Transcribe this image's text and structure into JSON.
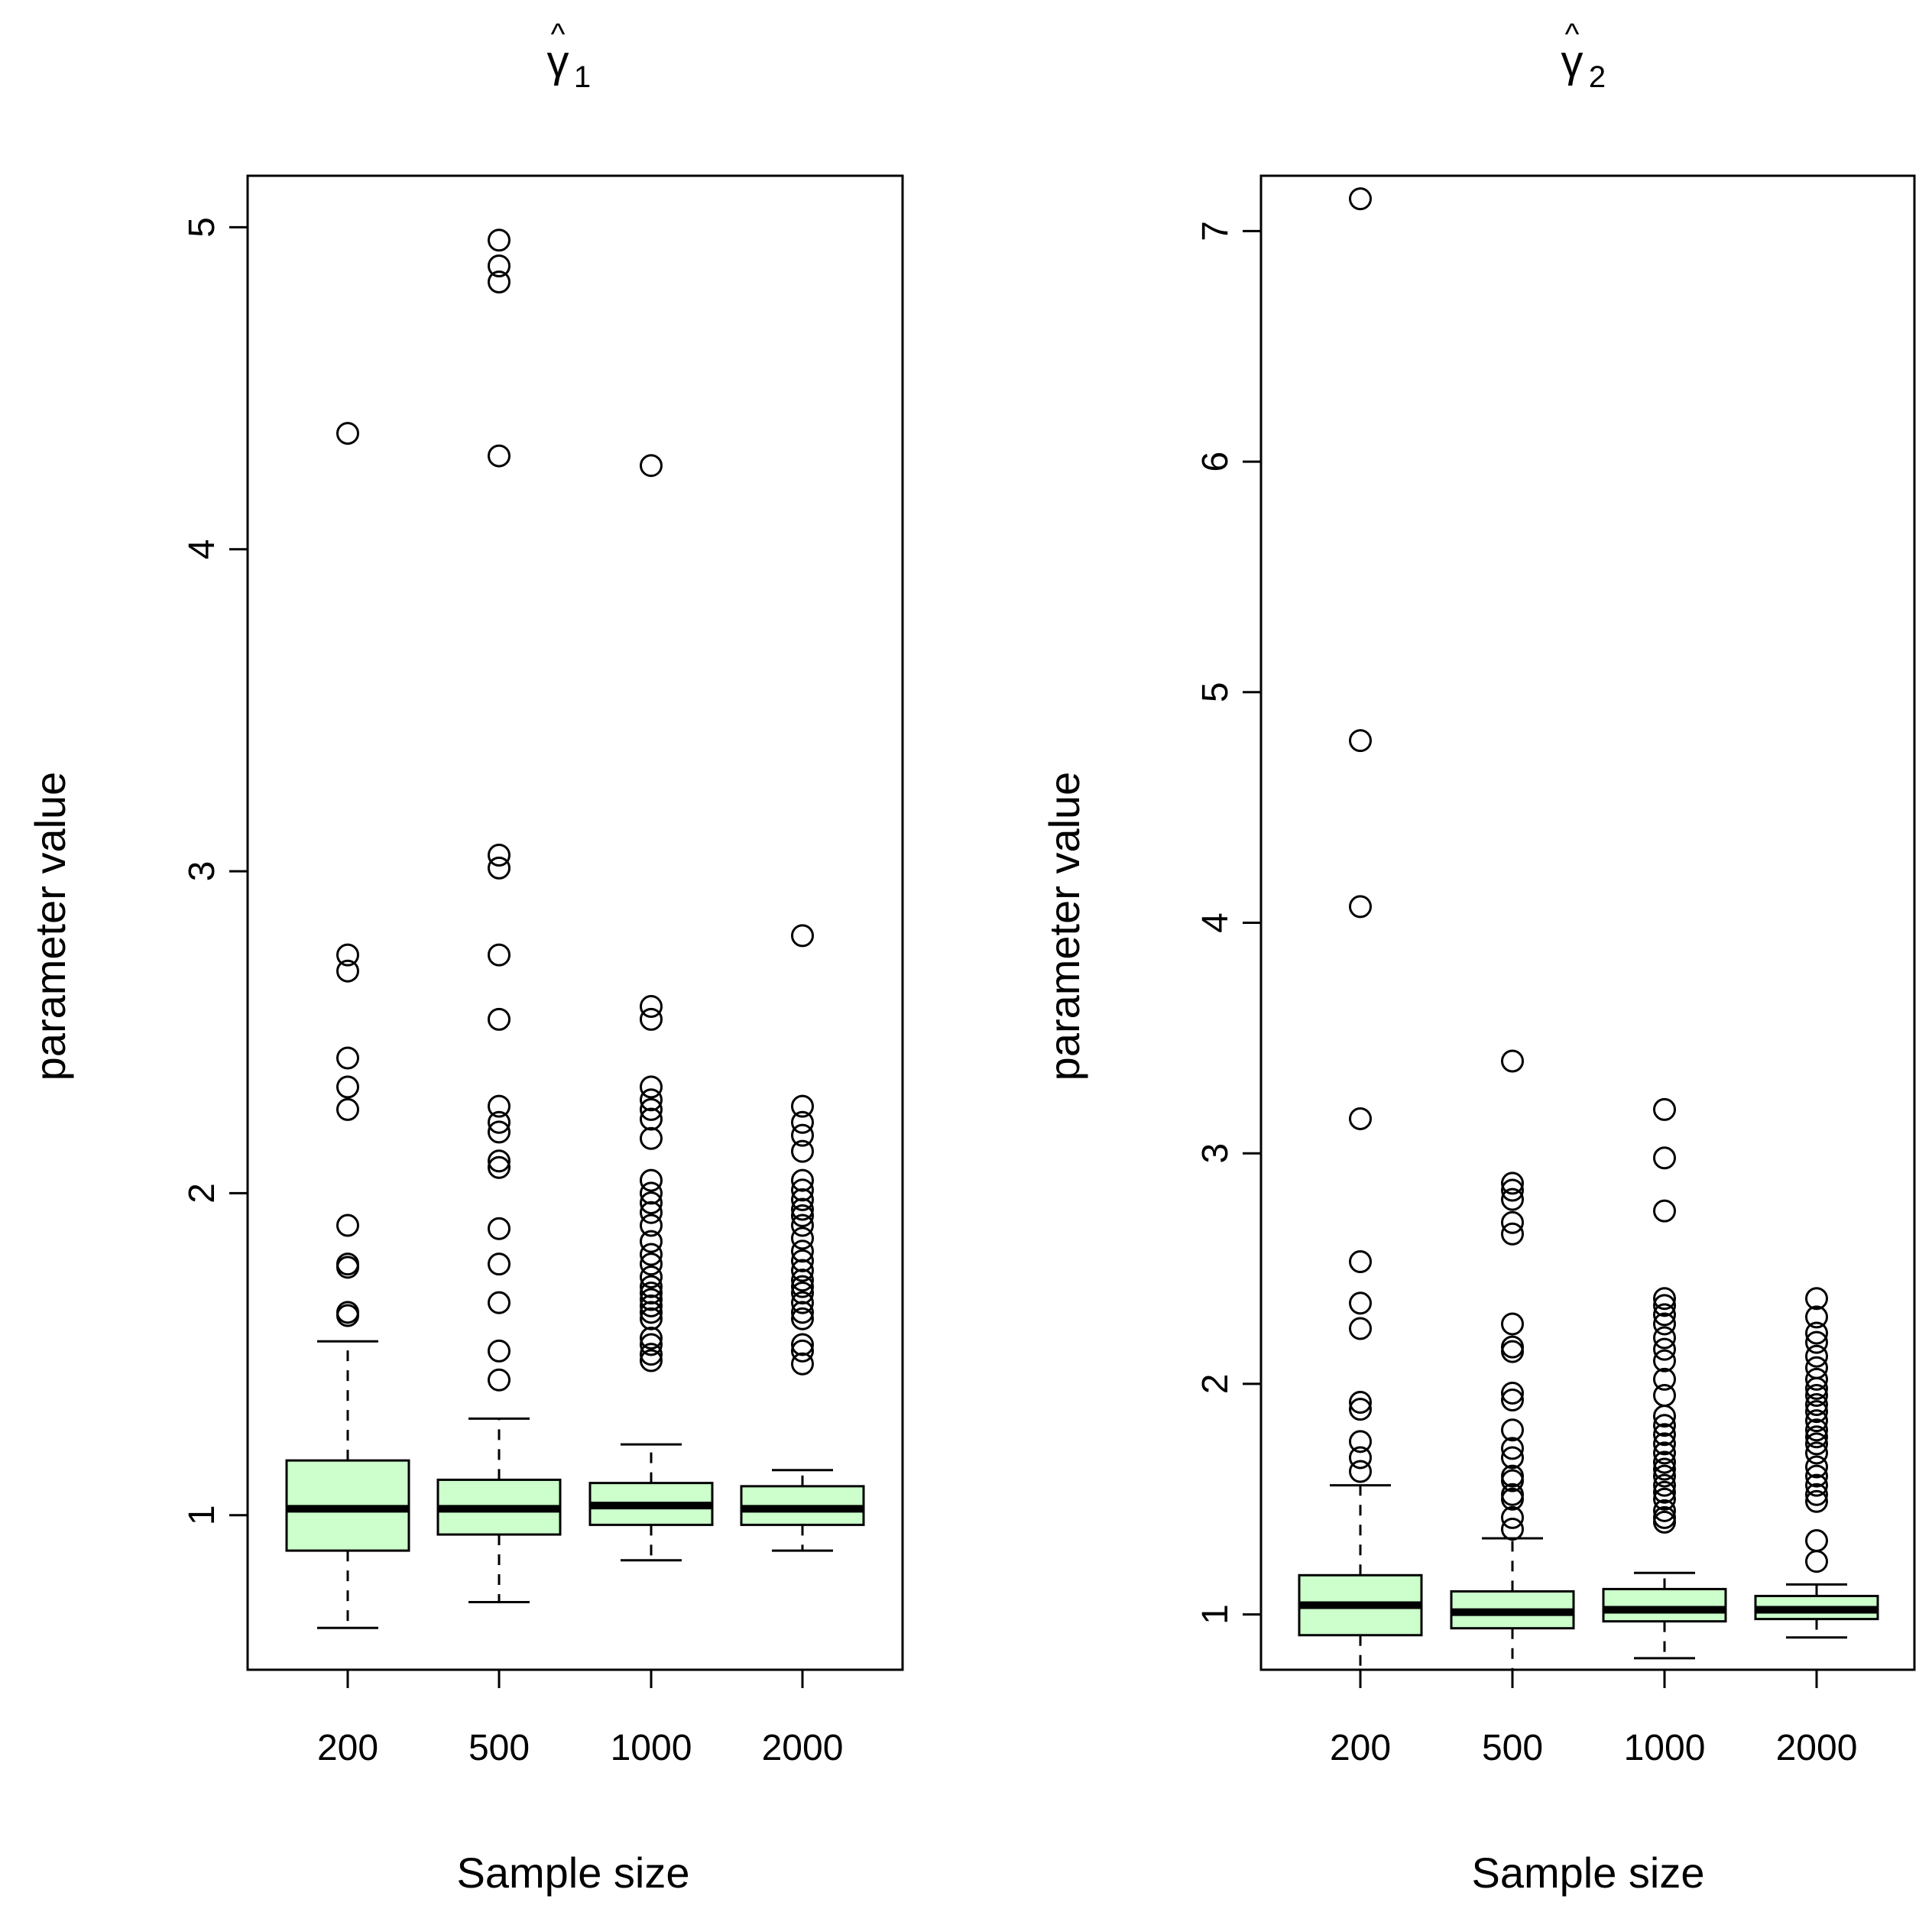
{
  "chart_data": [
    {
      "type": "boxplot",
      "title": "γ̂1",
      "title_symbol": "γ",
      "title_hat": "^",
      "title_subscript": "1",
      "xlabel": "Sample size",
      "ylabel": "parameter value",
      "categories": [
        "200",
        "500",
        "1000",
        "2000"
      ],
      "yticks": [
        1,
        2,
        3,
        4,
        5
      ],
      "ylim": [
        0.52,
        5.16
      ],
      "box_color": "#ccffcc",
      "boxes": [
        {
          "label": "200",
          "whisker_low": 0.65,
          "q1": 0.89,
          "median": 1.02,
          "q3": 1.17,
          "whisker_high": 1.54,
          "outliers": [
            1.62,
            1.63,
            1.77,
            1.78,
            1.9,
            2.26,
            2.33,
            2.42,
            2.69,
            2.74,
            4.36
          ]
        },
        {
          "label": "500",
          "whisker_low": 0.73,
          "q1": 0.94,
          "median": 1.02,
          "q3": 1.11,
          "whisker_high": 1.3,
          "outliers": [
            1.42,
            1.51,
            1.66,
            1.78,
            1.89,
            2.08,
            2.1,
            2.19,
            2.22,
            2.27,
            2.54,
            2.74,
            3.01,
            3.05,
            4.29,
            4.83,
            4.88,
            4.96
          ]
        },
        {
          "label": "1000",
          "whisker_low": 0.86,
          "q1": 0.97,
          "median": 1.03,
          "q3": 1.1,
          "whisker_high": 1.22,
          "outliers": [
            1.48,
            1.5,
            1.53,
            1.55,
            1.61,
            1.63,
            1.65,
            1.67,
            1.69,
            1.71,
            1.74,
            1.78,
            1.81,
            1.85,
            1.9,
            1.94,
            1.97,
            2.0,
            2.04,
            2.17,
            2.23,
            2.26,
            2.29,
            2.33,
            2.54,
            2.58,
            4.26
          ]
        },
        {
          "label": "2000",
          "whisker_low": 0.89,
          "q1": 0.97,
          "median": 1.02,
          "q3": 1.09,
          "whisker_high": 1.14,
          "outliers": [
            1.47,
            1.51,
            1.53,
            1.61,
            1.63,
            1.66,
            1.69,
            1.71,
            1.73,
            1.76,
            1.79,
            1.82,
            1.86,
            1.9,
            1.93,
            1.95,
            1.98,
            2.01,
            2.04,
            2.13,
            2.18,
            2.22,
            2.27,
            2.8
          ]
        }
      ]
    },
    {
      "type": "boxplot",
      "title": "γ̂2",
      "title_symbol": "γ",
      "title_hat": "^",
      "title_subscript": "2",
      "xlabel": "Sample size",
      "ylabel": "parameter value",
      "categories": [
        "200",
        "500",
        "1000",
        "2000"
      ],
      "yticks": [
        1,
        2,
        3,
        4,
        5,
        6,
        7
      ],
      "ylim": [
        0.76,
        7.24
      ],
      "box_color": "#ccffcc",
      "boxes": [
        {
          "label": "200",
          "whisker_low": 0.76,
          "q1": 0.91,
          "median": 1.04,
          "q3": 1.17,
          "whisker_high": 1.56,
          "outliers": [
            1.62,
            1.68,
            1.75,
            1.89,
            1.92,
            2.24,
            2.35,
            2.53,
            3.15,
            4.07,
            4.79,
            7.14
          ]
        },
        {
          "label": "500",
          "whisker_low": 0.76,
          "q1": 0.94,
          "median": 1.01,
          "q3": 1.1,
          "whisker_high": 1.33,
          "outliers": [
            1.37,
            1.42,
            1.5,
            1.52,
            1.58,
            1.6,
            1.68,
            1.72,
            1.8,
            1.93,
            1.96,
            2.14,
            2.16,
            2.26,
            2.65,
            2.7,
            2.8,
            2.84,
            2.87,
            3.4
          ]
        },
        {
          "label": "1000",
          "whisker_low": 0.81,
          "q1": 0.97,
          "median": 1.02,
          "q3": 1.11,
          "whisker_high": 1.18,
          "outliers": [
            1.4,
            1.42,
            1.45,
            1.5,
            1.53,
            1.56,
            1.6,
            1.63,
            1.66,
            1.7,
            1.74,
            1.78,
            1.82,
            1.86,
            1.95,
            2.02,
            2.1,
            2.15,
            2.2,
            2.26,
            2.3,
            2.34,
            2.37,
            2.75,
            2.98,
            3.19
          ]
        },
        {
          "label": "2000",
          "whisker_low": 0.9,
          "q1": 0.98,
          "median": 1.02,
          "q3": 1.08,
          "whisker_high": 1.13,
          "outliers": [
            1.23,
            1.32,
            1.49,
            1.52,
            1.56,
            1.6,
            1.64,
            1.7,
            1.74,
            1.77,
            1.8,
            1.84,
            1.88,
            1.91,
            1.95,
            1.98,
            2.02,
            2.07,
            2.12,
            2.18,
            2.22,
            2.29,
            2.37
          ]
        }
      ]
    }
  ]
}
